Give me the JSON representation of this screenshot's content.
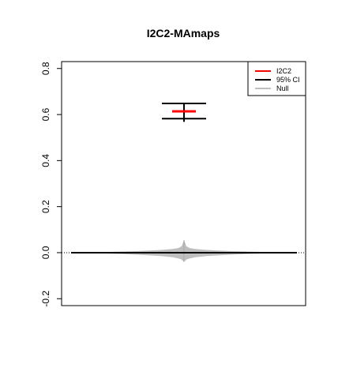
{
  "chart_data": {
    "type": "line",
    "title": "I2C2-MAmaps",
    "xlabel": "",
    "ylabel": "",
    "ylim": [
      -0.23,
      0.83
    ],
    "yticks": [
      -0.2,
      0.0,
      0.2,
      0.4,
      0.6,
      0.8
    ],
    "ytick_labels": [
      "-0.2",
      "0.0",
      "0.2",
      "0.4",
      "0.6",
      "0.8"
    ],
    "reference_line": {
      "y": 0.0,
      "style": "dotted"
    },
    "estimate": {
      "name": "I2C2",
      "value": 0.614,
      "color": "#ff0000"
    },
    "ci": {
      "name": "95% CI",
      "lower": 0.582,
      "upper": 0.648,
      "color": "#000000"
    },
    "null_distribution": {
      "name": "Null",
      "color": "#bebebe",
      "offsets": [
        -1.0,
        -0.8,
        -0.6,
        -0.4,
        -0.2,
        -0.1,
        -0.05,
        -0.02,
        0.0,
        0.02,
        0.05,
        0.1,
        0.2,
        0.4,
        0.6,
        0.8,
        1.0
      ],
      "upper": [
        0.0,
        0.002,
        0.004,
        0.007,
        0.012,
        0.016,
        0.02,
        0.028,
        0.055,
        0.028,
        0.02,
        0.016,
        0.012,
        0.007,
        0.004,
        0.002,
        0.0
      ],
      "lower": [
        0.0,
        -0.002,
        -0.005,
        -0.009,
        -0.015,
        -0.02,
        -0.025,
        -0.03,
        -0.04,
        -0.03,
        -0.025,
        -0.02,
        -0.015,
        -0.009,
        -0.005,
        -0.002,
        0.0
      ]
    },
    "legend": {
      "position": "top-right",
      "entries": [
        {
          "label": "I2C2",
          "color": "#ff0000"
        },
        {
          "label": "95% CI",
          "color": "#000000"
        },
        {
          "label": "Null",
          "color": "#bebebe"
        }
      ]
    },
    "grid": false
  }
}
